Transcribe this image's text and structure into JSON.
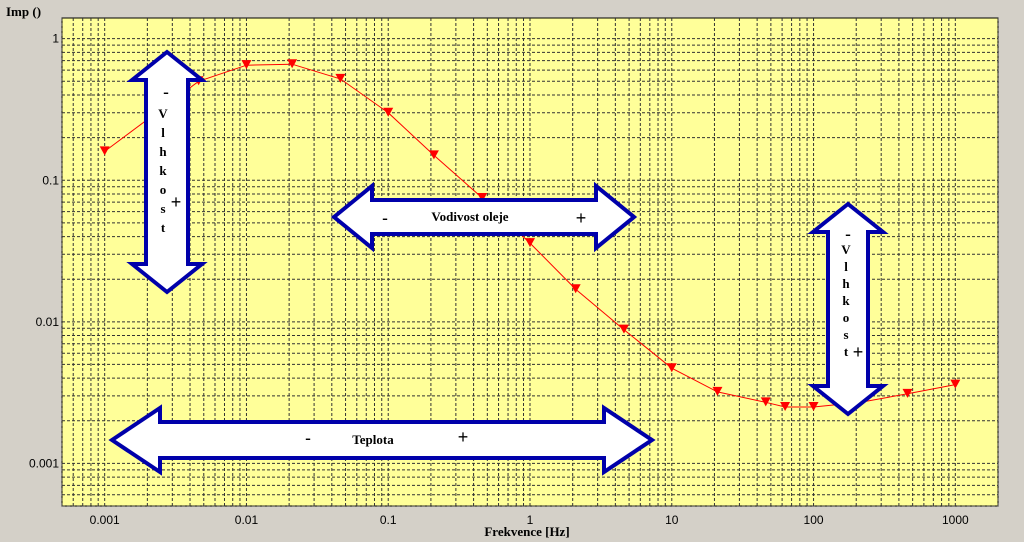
{
  "chart_data": {
    "type": "line",
    "title": "",
    "xlabel": "Frekvence [Hz]",
    "ylabel": "Imp ()",
    "x_scale": "log",
    "y_scale": "log",
    "xlim": [
      0.0005,
      2000
    ],
    "ylim": [
      0.0005,
      1.4
    ],
    "x_ticks": [
      {
        "value": 0.001,
        "label": "0.001"
      },
      {
        "value": 0.01,
        "label": "0.01"
      },
      {
        "value": 0.1,
        "label": "0.1"
      },
      {
        "value": 1,
        "label": "1"
      },
      {
        "value": 10,
        "label": "10"
      },
      {
        "value": 100,
        "label": "100"
      },
      {
        "value": 1000,
        "label": "1000"
      }
    ],
    "y_ticks": [
      {
        "value": 0.001,
        "label": "0.001"
      },
      {
        "value": 0.01,
        "label": "0.01"
      },
      {
        "value": 0.1,
        "label": "0.1"
      },
      {
        "value": 1,
        "label": "1"
      }
    ],
    "grid": true,
    "background_color": "#ffff99",
    "series": [
      {
        "color": "#ff0000",
        "marker": "down-triangle",
        "x": [
          0.001,
          0.0046,
          0.01,
          0.021,
          0.046,
          0.1,
          0.21,
          0.46,
          1,
          2.1,
          4.6,
          10,
          21,
          46,
          63,
          100,
          215,
          460,
          1000
        ],
        "y": [
          0.16,
          0.5,
          0.65,
          0.66,
          0.52,
          0.3,
          0.15,
          0.075,
          0.036,
          0.017,
          0.0088,
          0.0047,
          0.0032,
          0.0027,
          0.0025,
          0.0025,
          0.0027,
          0.0031,
          0.0036
        ]
      }
    ],
    "annotations": {
      "left_vertical": {
        "label_letters": [
          "V",
          "l",
          "h",
          "k",
          "o",
          "s",
          "t"
        ],
        "minus": "-",
        "plus": "+"
      },
      "center_horizontal": {
        "label": "Vodivost oleje",
        "minus": "-",
        "plus": "+"
      },
      "right_vertical": {
        "label_letters": [
          "V",
          "l",
          "h",
          "k",
          "o",
          "s",
          "t"
        ],
        "minus": "-",
        "plus": "+"
      },
      "bottom_horizontal": {
        "label": "Teplota",
        "minus": "-",
        "plus": "+"
      }
    },
    "arrow_colors": {
      "fill": "#ffffff",
      "stroke": "#0000aa"
    }
  }
}
